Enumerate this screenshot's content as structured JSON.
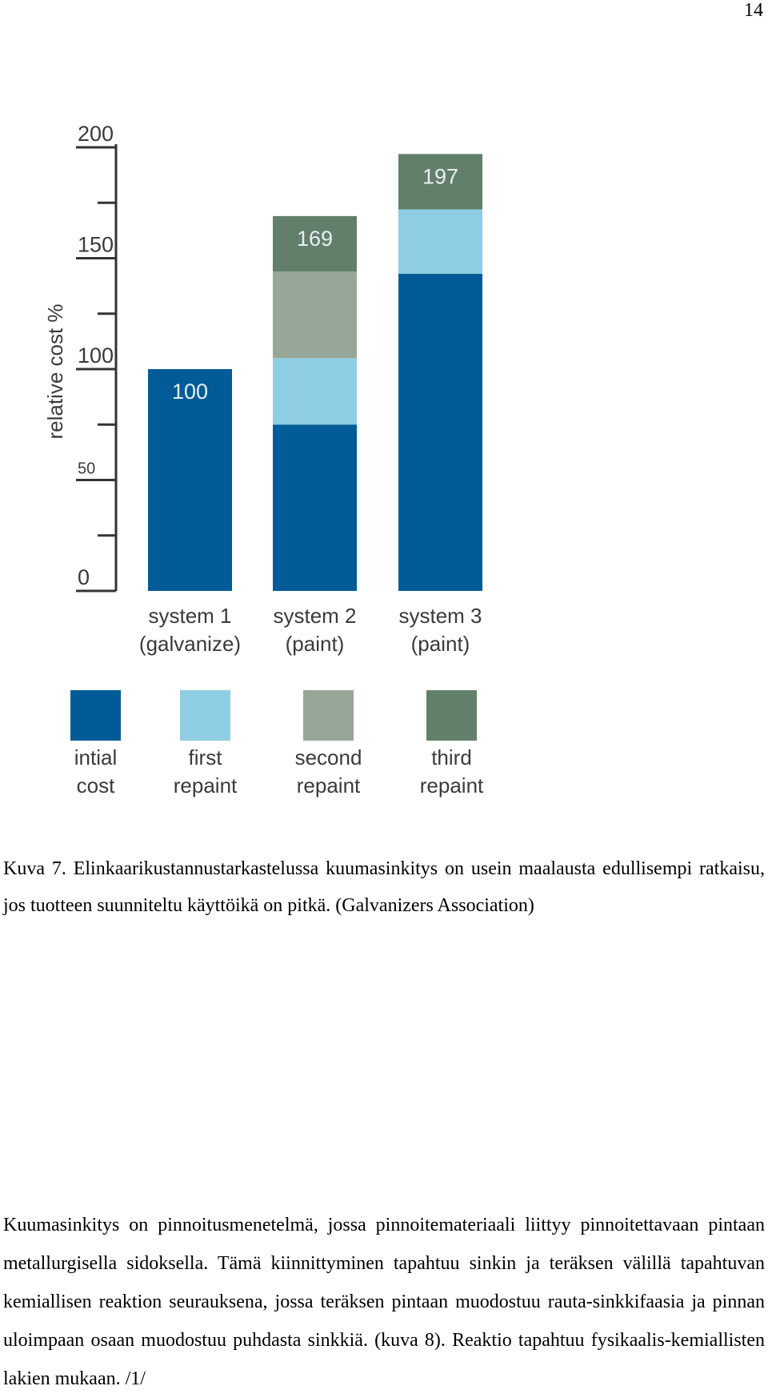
{
  "page": {
    "number": "14"
  },
  "chart_data": {
    "type": "bar",
    "stacked": true,
    "ylabel": "relative cost %",
    "ylim": [
      0,
      200
    ],
    "yticks": [
      "0",
      "50",
      "100",
      "150",
      "200"
    ],
    "grid": false,
    "legend_position": "bottom",
    "categories": [
      "system 1\n(galvanize)",
      "system 2\n(paint)",
      "system 3\n(paint)"
    ],
    "category_lines": [
      [
        "system 1",
        "(galvanize)"
      ],
      [
        "system 2",
        "(paint)"
      ],
      [
        "system 3",
        "(paint)"
      ]
    ],
    "totals": [
      100,
      169,
      197
    ],
    "total_labels": [
      "100",
      "169",
      "197"
    ],
    "series": [
      {
        "name": "intial cost",
        "name_lines": [
          "intial",
          "cost"
        ],
        "color": "#005b96",
        "values": [
          100,
          75,
          143
        ]
      },
      {
        "name": "first repaint",
        "name_lines": [
          "first",
          "repaint"
        ],
        "color": "#8ecde3",
        "values": [
          0,
          30,
          29
        ]
      },
      {
        "name": "second repaint",
        "name_lines": [
          "second",
          "repaint"
        ],
        "color": "#97a797",
        "values": [
          0,
          39,
          0
        ]
      },
      {
        "name": "third repaint",
        "name_lines": [
          "third",
          "repaint"
        ],
        "color": "#627f6a",
        "values": [
          0,
          25,
          25
        ]
      }
    ]
  },
  "caption": {
    "text": "Kuva 7. Elinkaarikustannustarkastelussa kuumasinkitys on usein maalausta edullisempi ratkaisu, jos tuotteen suunniteltu käyttöikä on pitkä. (Galvanizers Association)"
  },
  "body": {
    "text": "Kuumasinkitys on pinnoitusmenetelmä, jossa pinnoitemateriaali liittyy pinnoitettavaan pintaan metallurgisella sidoksella. Tämä kiinnittyminen tapahtuu sinkin ja teräksen välillä tapahtuvan kemiallisen reaktion seurauksena, jossa teräksen pintaan muodostuu rauta-sinkkifaasia ja pinnan uloimpaan osaan muodostuu puhdasta sinkkiä. (kuva 8). Reaktio tapahtuu fysikaalis-kemiallisten lakien mukaan. /1/"
  }
}
